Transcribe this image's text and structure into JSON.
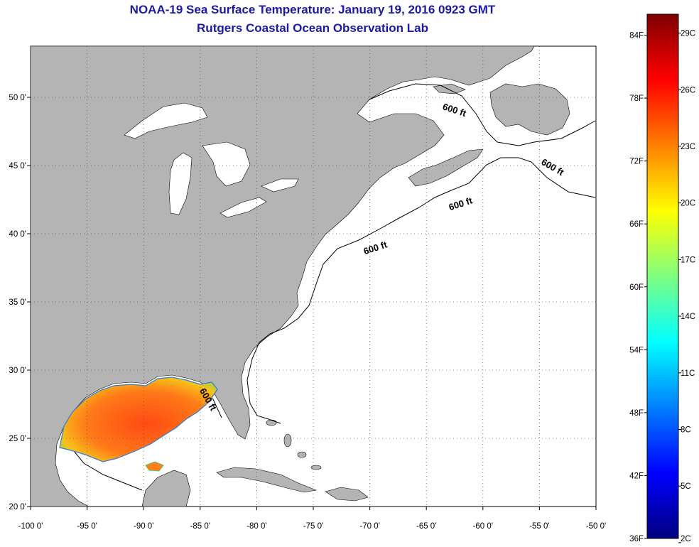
{
  "title": {
    "line1": "NOAA-19 Sea Surface Temperature:  January 19, 2016 0923 GMT",
    "line2": "Rutgers Coastal Ocean Observation Lab"
  },
  "map": {
    "lon_labels": [
      "-100 0'",
      "-95 0'",
      "-90 0'",
      "-85 0'",
      "-80 0'",
      "-75 0'",
      "-70 0'",
      "-65 0'",
      "-60 0'",
      "-55 0'",
      "-50 0'"
    ],
    "lat_labels": [
      "50 0'",
      "45 0'",
      "40 0'",
      "35 0'",
      "30 0'",
      "25 0'",
      "20 0'"
    ],
    "contour_label": "600 ft",
    "land_color": "#b4b4b4",
    "ocean_color": "#ffffff",
    "grid_style": "dotted"
  },
  "colorbar": {
    "fahrenheit_labels": [
      "84F",
      "78F",
      "72F",
      "66F",
      "60F",
      "54F",
      "48F",
      "42F",
      "36F"
    ],
    "celsius_labels": [
      "29C",
      "26C",
      "23C",
      "20C",
      "17C",
      "14C",
      "11C",
      "8C",
      "5C",
      "2C"
    ],
    "colormap": "jet"
  }
}
